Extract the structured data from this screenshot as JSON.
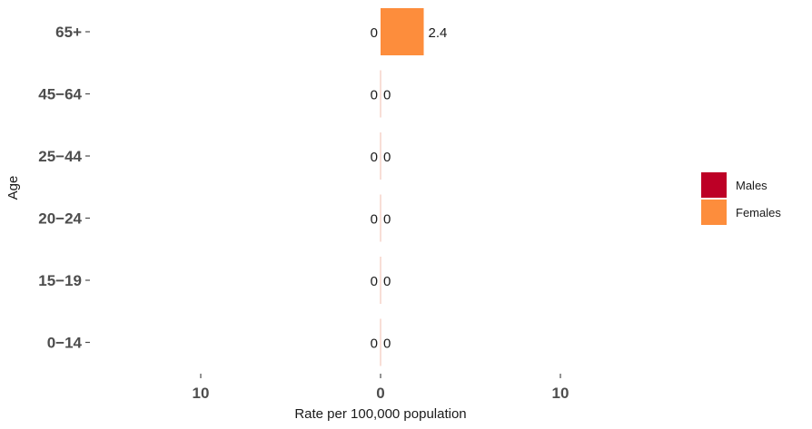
{
  "chart_data": {
    "type": "bar",
    "orientation": "horizontal",
    "layout": "population-pyramid",
    "categories": [
      "65+",
      "45-64",
      "25-44",
      "20-24",
      "15-19",
      "0-14"
    ],
    "category_tick_labels": [
      "65+",
      "45−64",
      "25−44",
      "20−24",
      "15−19",
      "0−14"
    ],
    "series": [
      {
        "name": "Males",
        "side": "left",
        "color": "#bd0026",
        "values": [
          0,
          0,
          0,
          0,
          0,
          0
        ],
        "labels": [
          "0",
          "0",
          "0",
          "0",
          "0",
          "0"
        ]
      },
      {
        "name": "Females",
        "side": "right",
        "color": "#fd8d3c",
        "values": [
          2.4,
          0,
          0,
          0,
          0,
          0
        ],
        "labels": [
          "2.4",
          "0",
          "0",
          "0",
          "0",
          "0"
        ]
      }
    ],
    "xlabel": "Rate per 100,000 population",
    "ylabel": "Age",
    "x_ticks": [
      {
        "value": -10,
        "label": "10"
      },
      {
        "value": 0,
        "label": "0"
      },
      {
        "value": 10,
        "label": "10"
      }
    ],
    "xlim": [
      -20,
      20
    ],
    "grid": false,
    "legend_position": "right"
  }
}
